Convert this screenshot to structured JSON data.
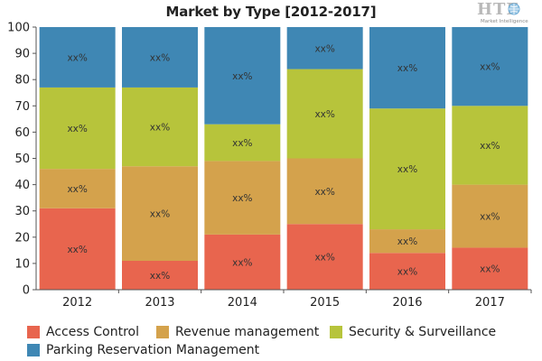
{
  "chart_data": {
    "type": "bar",
    "stacked": true,
    "title": "Market by Type [2012-2017]",
    "categories": [
      "2012",
      "2013",
      "2014",
      "2015",
      "2016",
      "2017"
    ],
    "ylim": [
      0,
      100
    ],
    "yticks": [
      0,
      10,
      20,
      30,
      40,
      50,
      60,
      70,
      80,
      90,
      100
    ],
    "grid": false,
    "legend_position": "bottom",
    "segment_label": "xx%",
    "series": [
      {
        "name": "Access Control",
        "color": "#e8654e",
        "values": [
          31,
          11,
          21,
          25,
          14,
          16
        ]
      },
      {
        "name": "Revenue management",
        "color": "#d4a24c",
        "values": [
          15,
          36,
          28,
          25,
          9,
          24
        ]
      },
      {
        "name": "Security & Surveillance",
        "color": "#b7c43b",
        "values": [
          31,
          30,
          14,
          34,
          46,
          30
        ]
      },
      {
        "name": "Parking Reservation Management",
        "color": "#3f87b4",
        "values": [
          23,
          23,
          37,
          16,
          31,
          30
        ]
      }
    ]
  },
  "logo": {
    "main": "HTF",
    "sub": "Market Intelligence"
  }
}
